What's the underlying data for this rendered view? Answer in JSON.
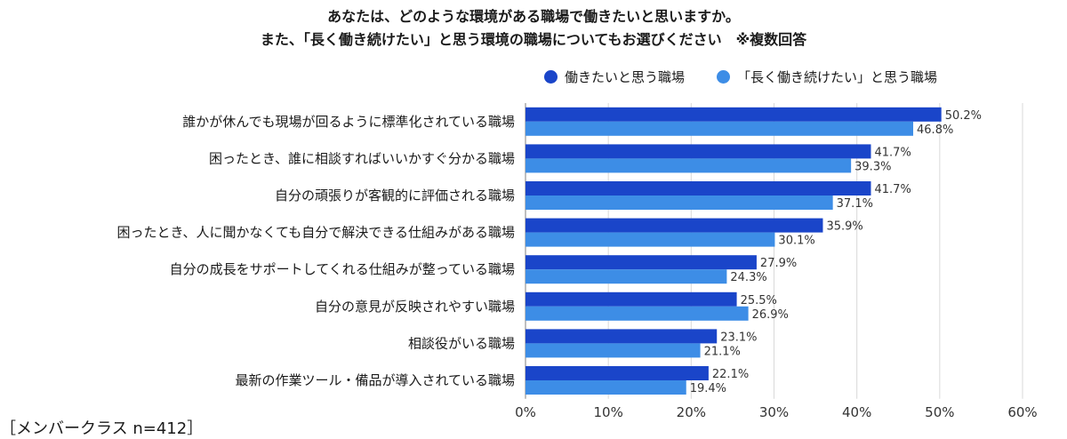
{
  "title_lines": [
    "あなたは、どのような環境がある職場で働きたいと思いますか。",
    "また、「長く働き続けたい」と思う環境の職場についてもお選びください　※複数回答"
  ],
  "footnote": "［メンバークラス n=412］",
  "colors": {
    "series1": "#1a45c9",
    "series2": "#3d8de6",
    "grid": "#d9d9d9",
    "axis": "#7f7f7f"
  },
  "chart_data": {
    "type": "bar",
    "orientation": "horizontal",
    "title": "あなたは、どのような環境がある職場で働きたいと思いますか。また、「長く働き続けたい」と思う環境の職場についてもお選びください　※複数回答",
    "categories": [
      "誰かが休んでも現場が回るように標準化されている職場",
      "困ったとき、誰に相談すればいいかすぐ分かる職場",
      "自分の頑張りが客観的に評価される職場",
      "困ったとき、人に聞かなくても自分で解決できる仕組みがある職場",
      "自分の成長をサポートしてくれる仕組みが整っている職場",
      "自分の意見が反映されやすい職場",
      "相談役がいる職場",
      "最新の作業ツール・備品が導入されている職場"
    ],
    "series": [
      {
        "name": "働きたいと思う職場",
        "values": [
          50.2,
          41.7,
          41.7,
          35.9,
          27.9,
          25.5,
          23.1,
          22.1
        ]
      },
      {
        "name": "「長く働き続けたい」と思う職場",
        "values": [
          46.8,
          39.3,
          37.1,
          30.1,
          24.3,
          26.9,
          21.1,
          19.4
        ]
      }
    ],
    "xlim": [
      0,
      60
    ],
    "xticks": [
      "0%",
      "10%",
      "20%",
      "30%",
      "40%",
      "50%",
      "60%"
    ],
    "value_suffix": "%",
    "grid": true,
    "legend_position": "top-right"
  }
}
